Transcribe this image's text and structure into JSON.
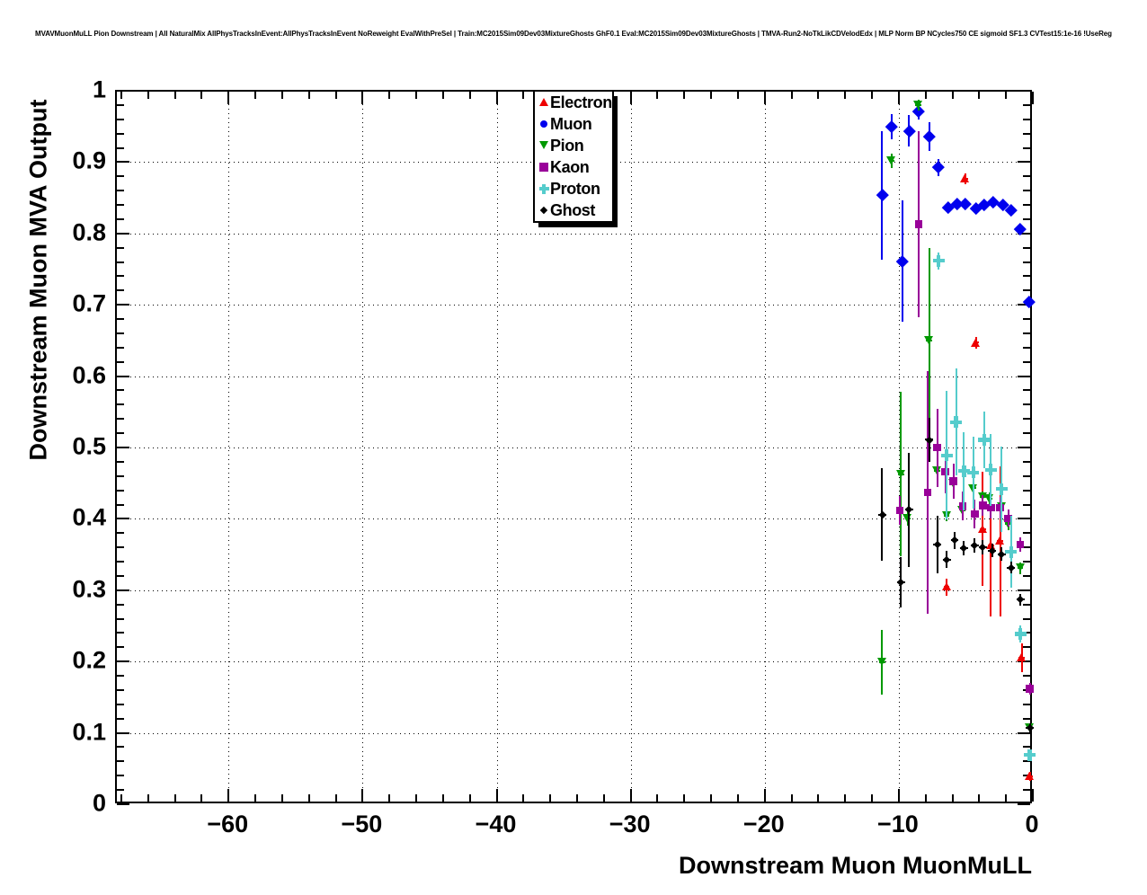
{
  "chart_data": {
    "type": "scatter",
    "title": "MVAVMuonMuLL Pion Downstream | All NaturalMix AllPhysTracksInEvent:AllPhysTracksInEvent NoReweight EvalWithPreSel | Train:MC2015Sim09Dev03MixtureGhosts GhF0.1 Eval:MC2015Sim09Dev03MixtureGhosts | TMVA-Run2-NoTkLikCDVelodEdx | MLP Norm BP NCycles750 CE sigmoid SF1.3 CVTest15:1e-16 !UseReg",
    "xlabel": "Downstream Muon MuonMuLL",
    "ylabel": "Downstream Muon MVA Output",
    "xlim": [
      -68.4,
      0
    ],
    "ylim": [
      0,
      1
    ],
    "x_major_ticks": [
      -60,
      -50,
      -40,
      -30,
      -20,
      -10,
      0
    ],
    "x_tick_labels": [
      "−60",
      "−50",
      "−40",
      "−30",
      "−20",
      "−10",
      "0"
    ],
    "x_minor_step": 2,
    "y_major_ticks": [
      0,
      0.1,
      0.2,
      0.3,
      0.4,
      0.5,
      0.6,
      0.7,
      0.8,
      0.9,
      1
    ],
    "y_tick_labels": [
      "0",
      "0.1",
      "0.2",
      "0.3",
      "0.4",
      "0.5",
      "0.6",
      "0.7",
      "0.8",
      "0.9",
      "1"
    ],
    "y_minor_step": 0.02,
    "grid": {
      "style": "dotted",
      "x_lines": [
        -60,
        -50,
        -40,
        -30,
        -20,
        -10
      ],
      "y_lines": [
        0.1,
        0.2,
        0.3,
        0.4,
        0.5,
        0.6,
        0.7,
        0.8,
        0.9
      ]
    },
    "legend_position": "top-center",
    "series": [
      {
        "name": "Electron",
        "color": "#ee0000",
        "plot_marker": "triangle-up",
        "legend_marker": "triangle-up",
        "marker_size": 11,
        "ex": 0.22,
        "points": [
          [
            -6.5,
            0.306,
            0.012
          ],
          [
            -5.1,
            0.878,
            0.008
          ],
          [
            -4.3,
            0.648,
            0.008
          ],
          [
            -3.8,
            0.387,
            0.08
          ],
          [
            -3.2,
            0.364,
            0.1
          ],
          [
            -2.5,
            0.37,
            0.105
          ],
          [
            -0.9,
            0.207,
            0.02
          ],
          [
            -0.3,
            0.04,
            0.006
          ]
        ]
      },
      {
        "name": "Muon",
        "color": "#0000ee",
        "plot_marker": "diamond",
        "legend_marker": "circle",
        "marker_size": 13,
        "ex": 0.22,
        "points": [
          [
            -11.3,
            0.855,
            0.09
          ],
          [
            -10.6,
            0.951,
            0.018
          ],
          [
            -9.8,
            0.762,
            0.085
          ],
          [
            -9.3,
            0.945,
            0.022
          ],
          [
            -8.6,
            0.973,
            0.012
          ],
          [
            -7.8,
            0.937,
            0.02
          ],
          [
            -7.1,
            0.894,
            0.012
          ],
          [
            -6.4,
            0.838,
            0.006
          ],
          [
            -5.7,
            0.843,
            0.005
          ],
          [
            -5.1,
            0.843,
            0.005
          ],
          [
            -4.3,
            0.836,
            0.005
          ],
          [
            -3.7,
            0.841,
            0.005
          ],
          [
            -3.0,
            0.845,
            0.005
          ],
          [
            -2.3,
            0.841,
            0.005
          ],
          [
            -1.7,
            0.834,
            0.005
          ],
          [
            -1.0,
            0.808,
            0.004
          ],
          [
            -0.35,
            0.706,
            0.004
          ]
        ]
      },
      {
        "name": "Pion",
        "color": "#009900",
        "plot_marker": "triangle-down",
        "legend_marker": "triangle-down",
        "marker_size": 11,
        "ex": 0.22,
        "points": [
          [
            -11.3,
            0.2,
            0.045
          ],
          [
            -10.6,
            0.903,
            0.01
          ],
          [
            -9.9,
            0.464,
            0.115
          ],
          [
            -9.4,
            0.402,
            0.01
          ],
          [
            -8.6,
            0.981,
            0.008
          ],
          [
            -7.8,
            0.651,
            0.13
          ],
          [
            -7.2,
            0.468,
            0.012
          ],
          [
            -6.5,
            0.406,
            0.008
          ],
          [
            -6.0,
            0.451,
            0.008
          ],
          [
            -5.3,
            0.413,
            0.008
          ],
          [
            -4.5,
            0.444,
            0.008
          ],
          [
            -3.8,
            0.432,
            0.008
          ],
          [
            -3.3,
            0.43,
            0.008
          ],
          [
            -2.4,
            0.418,
            0.008
          ],
          [
            -1.9,
            0.394,
            0.008
          ],
          [
            -1.0,
            0.332,
            0.008
          ],
          [
            -0.3,
            0.108,
            0.006
          ]
        ]
      },
      {
        "name": "Kaon",
        "color": "#990099",
        "plot_marker": "square",
        "legend_marker": "square",
        "marker_size": 10,
        "ex": 0.22,
        "points": [
          [
            -10.0,
            0.413,
            0.02
          ],
          [
            -8.6,
            0.814,
            0.13
          ],
          [
            -7.9,
            0.438,
            0.17
          ],
          [
            -7.2,
            0.501,
            0.055
          ],
          [
            -6.6,
            0.467,
            0.03
          ],
          [
            -6.0,
            0.454,
            0.025
          ],
          [
            -5.3,
            0.419,
            0.02
          ],
          [
            -4.4,
            0.408,
            0.02
          ],
          [
            -3.8,
            0.42,
            0.015
          ],
          [
            -3.2,
            0.417,
            0.015
          ],
          [
            -2.5,
            0.417,
            0.015
          ],
          [
            -1.9,
            0.402,
            0.012
          ],
          [
            -1.0,
            0.365,
            0.01
          ],
          [
            -0.3,
            0.163,
            0.008
          ]
        ]
      },
      {
        "name": "Proton",
        "color": "#55cccc",
        "plot_marker": "plus",
        "legend_marker": "plus",
        "marker_size": 13,
        "ex": 0.22,
        "points": [
          [
            -7.1,
            0.763,
            0.012
          ],
          [
            -6.5,
            0.49,
            0.09
          ],
          [
            -5.8,
            0.537,
            0.075
          ],
          [
            -5.2,
            0.468,
            0.055
          ],
          [
            -4.5,
            0.466,
            0.05
          ],
          [
            -3.7,
            0.512,
            0.04
          ],
          [
            -3.2,
            0.47,
            0.05
          ],
          [
            -2.4,
            0.443,
            0.06
          ],
          [
            -1.7,
            0.355,
            0.05
          ],
          [
            -1.0,
            0.24,
            0.012
          ],
          [
            -0.3,
            0.07,
            0.008
          ]
        ]
      },
      {
        "name": "Ghost",
        "color": "#000000",
        "plot_marker": "diamond",
        "legend_marker": "diamond",
        "marker_size": 8,
        "ex": 0.3,
        "points": [
          [
            -11.3,
            0.407,
            0.065
          ],
          [
            -9.9,
            0.312,
            0.035
          ],
          [
            -9.3,
            0.414,
            0.08
          ],
          [
            -7.8,
            0.512,
            0.031
          ],
          [
            -7.2,
            0.365,
            0.04
          ],
          [
            -6.5,
            0.344,
            0.012
          ],
          [
            -5.9,
            0.371,
            0.012
          ],
          [
            -5.2,
            0.36,
            0.01
          ],
          [
            -4.4,
            0.364,
            0.01
          ],
          [
            -3.8,
            0.362,
            0.01
          ],
          [
            -3.1,
            0.357,
            0.01
          ],
          [
            -2.4,
            0.352,
            0.01
          ],
          [
            -1.7,
            0.333,
            0.008
          ],
          [
            -1.0,
            0.288,
            0.008
          ],
          [
            -0.3,
            0.108,
            0.006
          ]
        ]
      }
    ]
  }
}
